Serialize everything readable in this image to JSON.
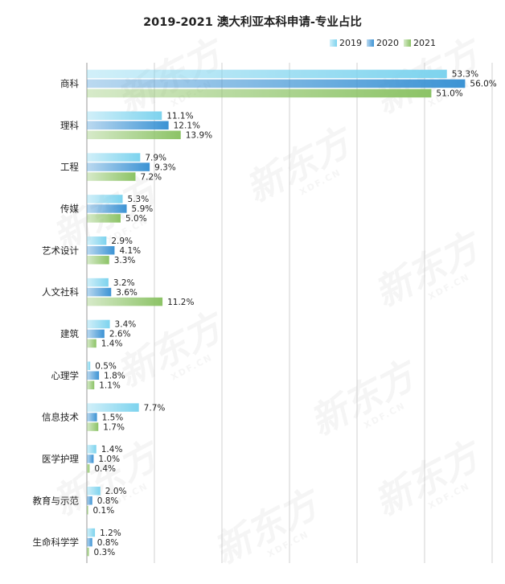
{
  "title": "2019-2021 澳大利亚本科申请-专业占比",
  "watermark": {
    "brand": "新东方",
    "site": "XDF.CN"
  },
  "colors": {
    "2019": "#7dd3ee",
    "2020": "#3c93d4",
    "2021": "#8cc366",
    "grid": "#d0d0d0",
    "axis": "#9a9a9a",
    "text": "#222222"
  },
  "chart_data": {
    "type": "bar",
    "orientation": "horizontal",
    "title": "2019-2021 澳大利亚本科申请-专业占比",
    "legend_position": "top-right",
    "grid": true,
    "xlim": [
      0,
      60
    ],
    "categories": [
      "商科",
      "理科",
      "工程",
      "传媒",
      "艺术设计",
      "人文社科",
      "建筑",
      "心理学",
      "信息技术",
      "医学护理",
      "教育与示范",
      "生命科学学"
    ],
    "series": [
      {
        "name": "2019",
        "values": [
          53.3,
          11.1,
          7.9,
          5.3,
          2.9,
          3.2,
          3.4,
          0.5,
          7.7,
          1.4,
          2.0,
          1.2
        ]
      },
      {
        "name": "2020",
        "values": [
          56.0,
          12.1,
          9.3,
          5.9,
          4.1,
          3.6,
          2.6,
          1.8,
          1.5,
          1.0,
          0.8,
          0.8
        ]
      },
      {
        "name": "2021",
        "values": [
          51.0,
          13.9,
          7.2,
          5.0,
          3.3,
          11.2,
          1.4,
          1.1,
          1.7,
          0.4,
          0.1,
          0.3
        ]
      }
    ],
    "value_labels": [
      [
        "53.3%",
        "11.1%",
        "7.9%",
        "5.3%",
        "2.9%",
        "3.2%",
        "3.4%",
        "0.5%",
        "7.7%",
        "1.4%",
        "2.0%",
        "1.2%"
      ],
      [
        "56.0%",
        "12.1%",
        "9.3%",
        "5.9%",
        "4.1%",
        "3.6%",
        "2.6%",
        "1.8%",
        "1.5%",
        "1.0%",
        "0.8%",
        "0.8%"
      ],
      [
        "51.0%",
        "13.9%",
        "7.2%",
        "5.0%",
        "3.3%",
        "11.2%",
        "1.4%",
        "1.1%",
        "1.7%",
        "0.4%",
        "0.1%",
        "0.3%"
      ]
    ]
  }
}
